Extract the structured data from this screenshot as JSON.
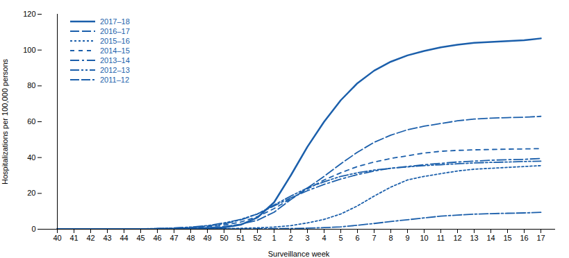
{
  "chart_data": {
    "type": "line",
    "xlabel": "Surveillance week",
    "ylabel": "Hospitalizations per 100,000 persons",
    "color": "#1B5FAB",
    "legend": "upper left",
    "grid": false,
    "ylim": [
      0,
      120
    ],
    "yticks": [
      0,
      20,
      40,
      60,
      80,
      100,
      120
    ],
    "categories": [
      "40",
      "41",
      "42",
      "43",
      "44",
      "45",
      "46",
      "47",
      "48",
      "49",
      "50",
      "51",
      "52",
      "1",
      "2",
      "3",
      "4",
      "5",
      "6",
      "7",
      "8",
      "9",
      "10",
      "11",
      "12",
      "13",
      "14",
      "15",
      "16",
      "17"
    ],
    "series": [
      {
        "name": "2017–18",
        "line_style": "solid",
        "values": [
          0.1,
          0.1,
          0.1,
          0.1,
          0.1,
          0.1,
          0.1,
          0.2,
          0.3,
          0.5,
          1.0,
          2.5,
          6.5,
          15.0,
          30.0,
          46.0,
          60.0,
          72.0,
          81.5,
          88.5,
          93.5,
          97.0,
          99.5,
          101.5,
          103.0,
          104.0,
          104.5,
          105.0,
          105.5,
          106.5
        ]
      },
      {
        "name": "2016–17",
        "line_style": "long-dash",
        "values": [
          0.1,
          0.1,
          0.1,
          0.1,
          0.1,
          0.2,
          0.3,
          0.4,
          0.6,
          0.9,
          1.4,
          2.8,
          5.0,
          9.5,
          16.5,
          23.0,
          29.5,
          36.5,
          43.0,
          48.5,
          52.5,
          55.5,
          57.5,
          59.0,
          60.5,
          61.5,
          62.0,
          62.3,
          62.5,
          63.0
        ]
      },
      {
        "name": "2015–16",
        "line_style": "dotted",
        "values": [
          0.1,
          0.1,
          0.1,
          0.1,
          0.1,
          0.1,
          0.1,
          0.1,
          0.1,
          0.2,
          0.3,
          0.5,
          0.8,
          1.2,
          2.0,
          3.5,
          5.5,
          8.5,
          13.0,
          18.5,
          23.5,
          27.5,
          29.5,
          31.0,
          32.5,
          33.5,
          34.0,
          34.5,
          35.0,
          35.5
        ]
      },
      {
        "name": "2014–15",
        "line_style": "dashed",
        "values": [
          0.1,
          0.1,
          0.1,
          0.1,
          0.1,
          0.1,
          0.2,
          0.3,
          0.7,
          1.3,
          2.3,
          4.0,
          7.0,
          11.5,
          17.0,
          22.5,
          27.5,
          31.5,
          35.0,
          37.5,
          39.5,
          41.0,
          42.5,
          43.5,
          44.0,
          44.3,
          44.5,
          44.7,
          44.8,
          45.0
        ]
      },
      {
        "name": "2013–14",
        "line_style": "dash-dot",
        "values": [
          0.1,
          0.1,
          0.1,
          0.1,
          0.1,
          0.2,
          0.3,
          0.6,
          1.0,
          1.8,
          3.0,
          5.2,
          8.5,
          13.0,
          17.5,
          21.5,
          25.0,
          28.0,
          30.5,
          32.5,
          34.0,
          35.0,
          36.0,
          36.8,
          37.5,
          38.0,
          38.5,
          38.8,
          39.0,
          39.5
        ]
      },
      {
        "name": "2012–13",
        "line_style": "dash-dot-dot",
        "values": [
          0.1,
          0.1,
          0.1,
          0.1,
          0.1,
          0.2,
          0.4,
          0.7,
          1.2,
          2.0,
          3.5,
          5.5,
          8.5,
          13.5,
          18.5,
          23.0,
          26.5,
          29.5,
          31.5,
          33.0,
          34.0,
          34.8,
          35.5,
          36.0,
          36.5,
          37.0,
          37.3,
          37.5,
          37.8,
          38.0
        ]
      },
      {
        "name": "2011–12",
        "line_style": "dash-dash-dot",
        "values": [
          0.1,
          0.1,
          0.1,
          0.1,
          0.1,
          0.1,
          0.1,
          0.1,
          0.1,
          0.1,
          0.1,
          0.1,
          0.2,
          0.3,
          0.4,
          0.6,
          0.9,
          1.3,
          2.2,
          3.2,
          4.3,
          5.3,
          6.3,
          7.3,
          7.9,
          8.4,
          8.7,
          8.9,
          9.1,
          9.4
        ]
      }
    ]
  }
}
